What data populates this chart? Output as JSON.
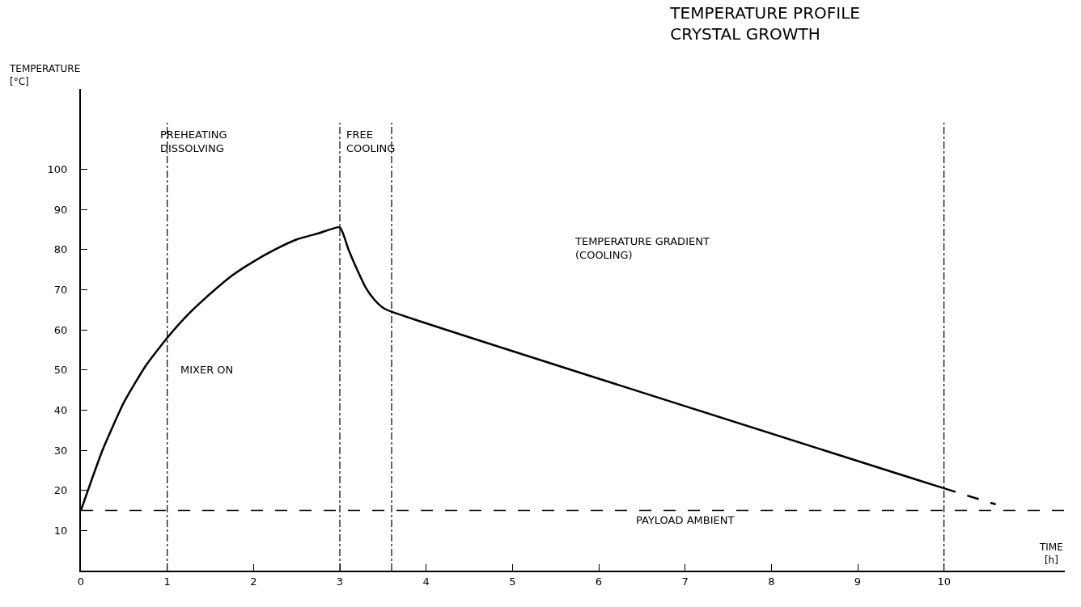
{
  "chart_data": {
    "type": "line",
    "title": "TEMPERATURE PROFILE\nCRYSTAL GROWTH",
    "xlabel": "TIME\n[h]",
    "ylabel": "TEMPERATURE\n[°C]",
    "series": [
      {
        "color": "#000000",
        "line_style": "solid",
        "x": [
          0,
          0.25,
          0.5,
          0.75,
          1,
          1.25,
          1.5,
          1.75,
          2,
          2.25,
          2.5,
          2.75,
          3,
          3.1,
          3.2,
          3.3,
          3.4,
          3.5,
          3.6,
          10
        ],
        "values": [
          15,
          30,
          42,
          51,
          58,
          64,
          69,
          73.5,
          77,
          80,
          82.5,
          84,
          85.5,
          80,
          75,
          70.5,
          67.5,
          65.5,
          64.5,
          20.5
        ]
      },
      {
        "color": "#000000",
        "line_style": "dashed",
        "x": [
          10,
          10.6
        ],
        "values": [
          20.5,
          16.5
        ]
      }
    ],
    "xlim": [
      0,
      11.4
    ],
    "ylim": [
      0,
      120
    ],
    "xticks": [
      0,
      1,
      2,
      3,
      4,
      5,
      6,
      7,
      8,
      9,
      10
    ],
    "yticks": [
      10,
      20,
      30,
      40,
      50,
      60,
      70,
      80,
      90,
      100
    ],
    "marker": "none",
    "ref_lines": [
      {
        "axis": "y",
        "value": 15,
        "label": "PAYLOAD AMBIENT",
        "line_style": "dashed",
        "color": "#000000"
      },
      {
        "axis": "x",
        "value": 1,
        "label": "MIXER ON",
        "line_style": "dashed",
        "color": "#000000"
      },
      {
        "axis": "x",
        "value": 3,
        "label": null,
        "line_style": "dashed",
        "color": "#000000"
      },
      {
        "axis": "x",
        "value": 3.6,
        "label": null,
        "line_style": "dashed",
        "color": "#000000"
      },
      {
        "axis": "x",
        "value": 10,
        "label": null,
        "line_style": "dashed",
        "color": "#000000"
      }
    ],
    "annotations": [
      "PREHEATING\nDISSOLVING",
      "FREE\nCOOLING",
      "TEMPERATURE GRADIENT\n(COOLING)"
    ]
  }
}
